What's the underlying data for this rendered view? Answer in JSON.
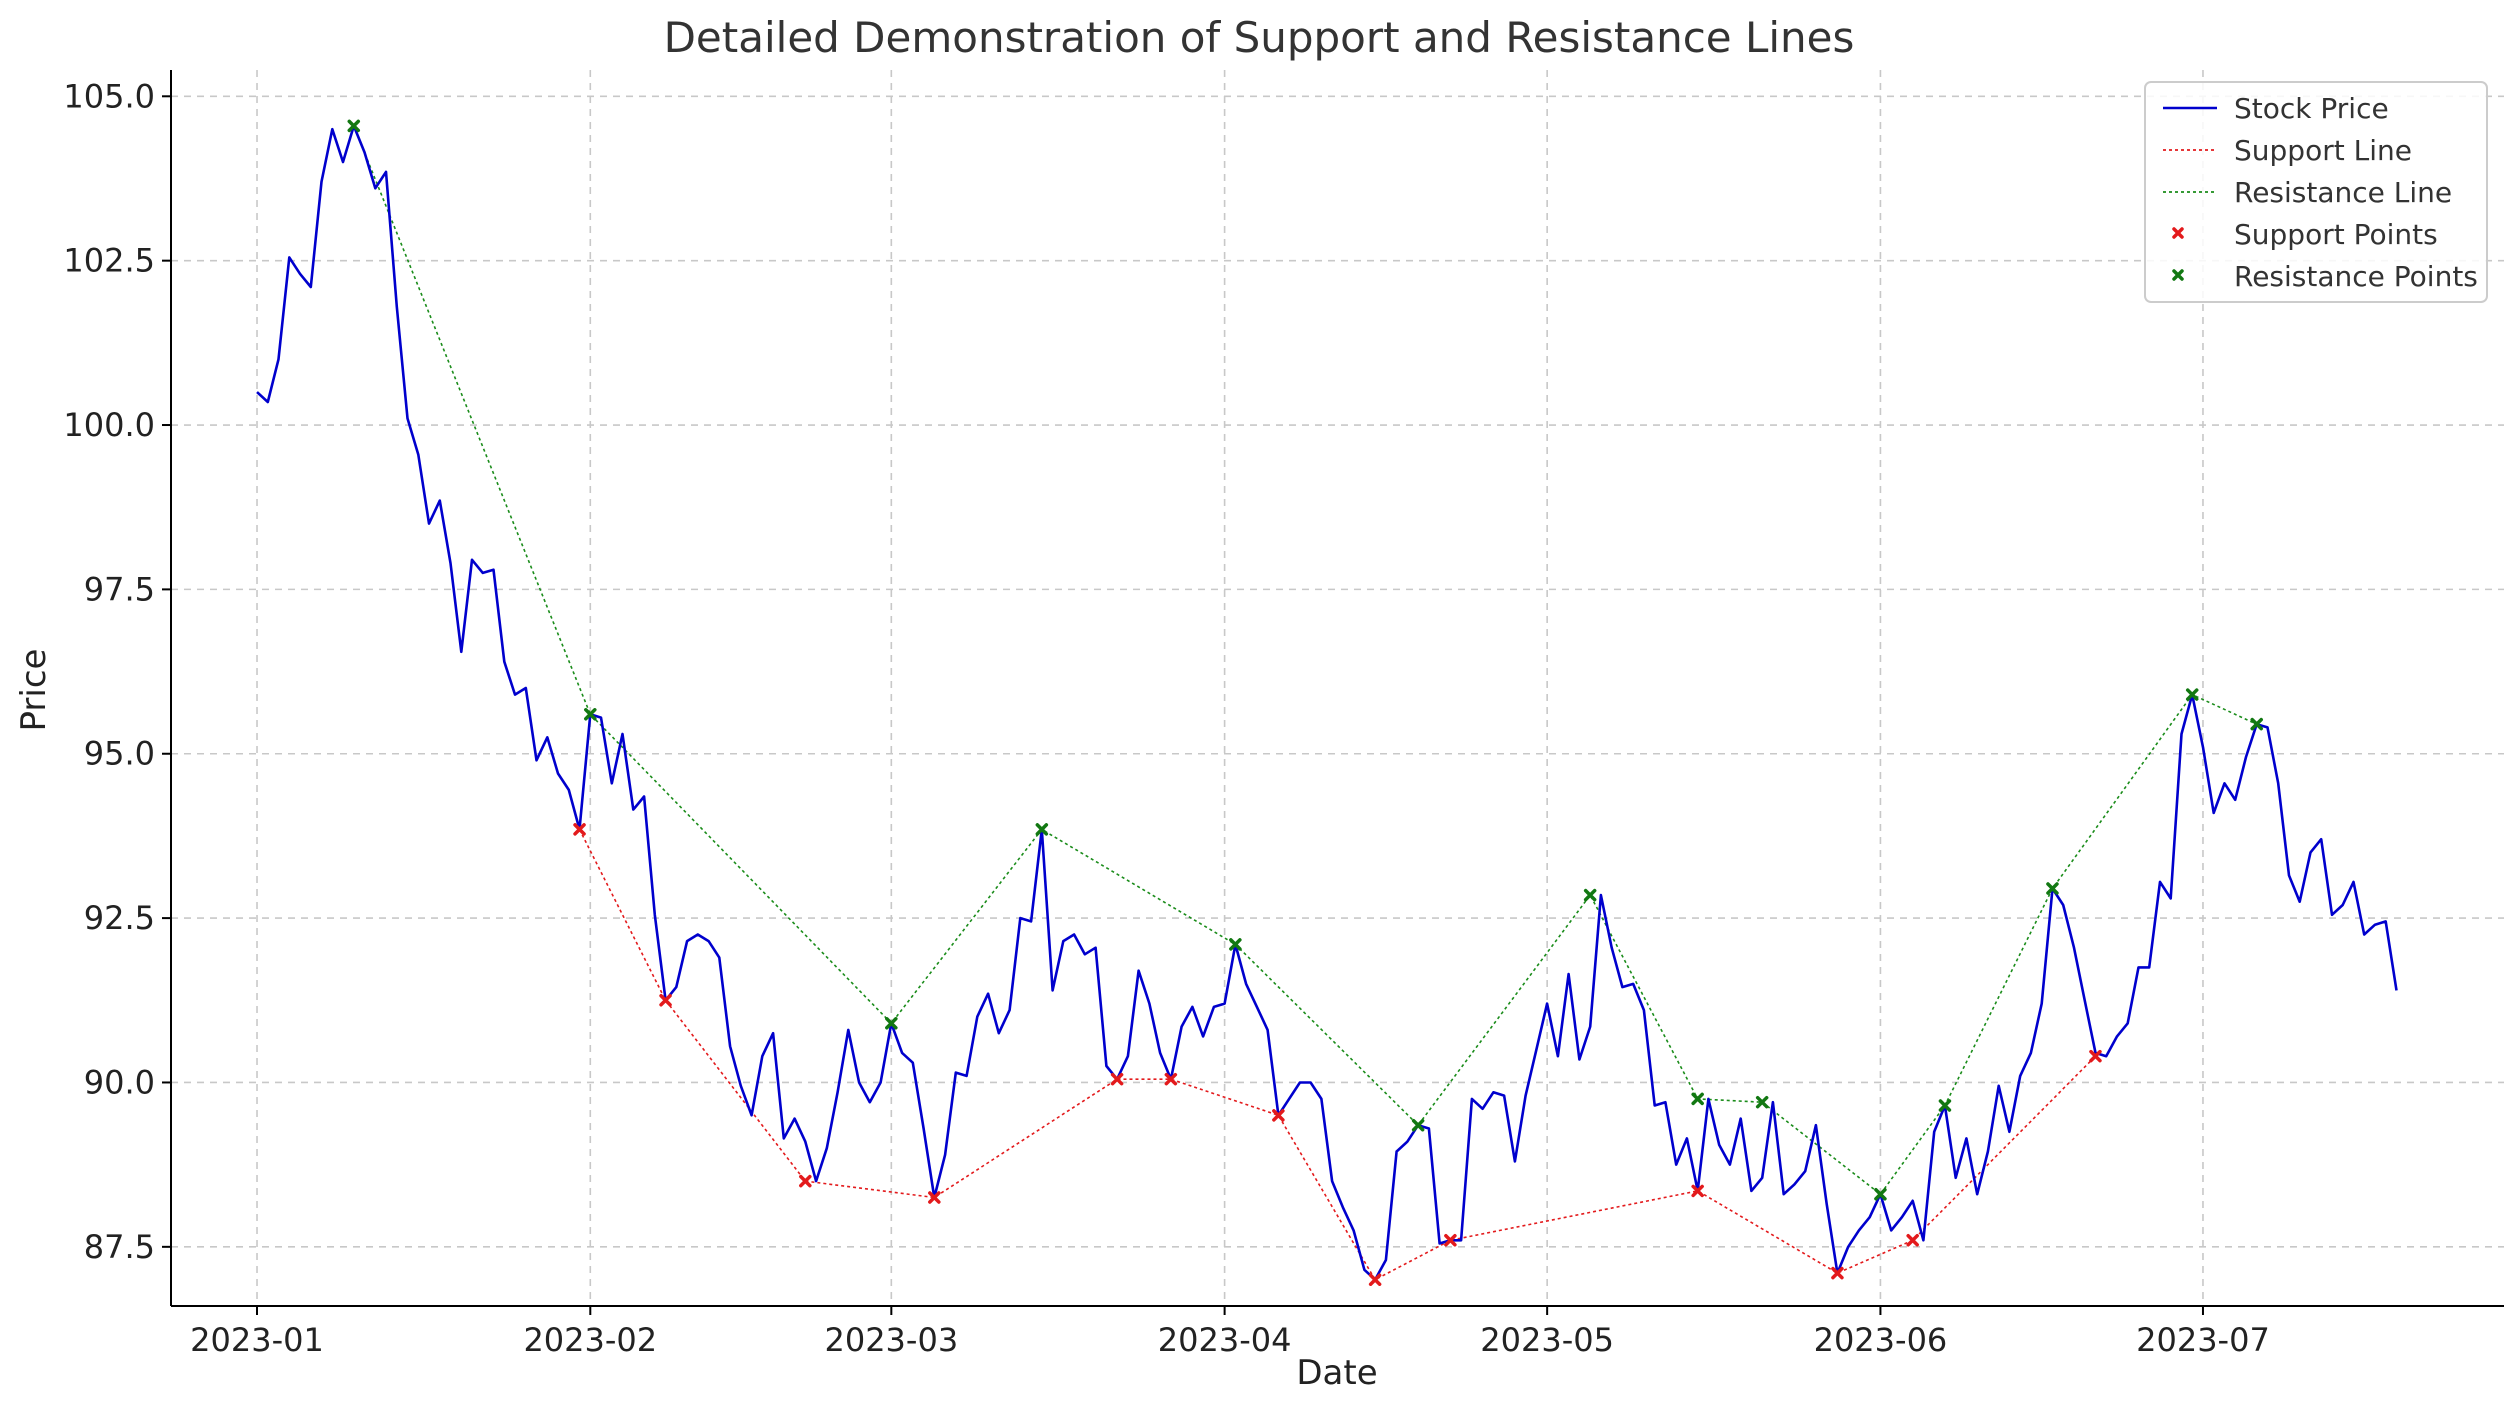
{
  "chart_data": {
    "type": "line",
    "title": "Detailed Demonstration of Support and Resistance Lines",
    "xlabel": "Date",
    "ylabel": "Price",
    "xlim": [
      "2022-12-24",
      "2023-07-29"
    ],
    "ylim": [
      86.6,
      105.4
    ],
    "x_ticks": [
      "2023-01-01",
      "2023-02-01",
      "2023-03-01",
      "2023-04-01",
      "2023-05-01",
      "2023-06-01",
      "2023-07-01"
    ],
    "x_tick_labels": [
      "2023-01",
      "2023-02",
      "2023-03",
      "2023-04",
      "2023-05",
      "2023-06",
      "2023-07"
    ],
    "y_ticks": [
      87.5,
      90.0,
      92.5,
      95.0,
      97.5,
      100.0,
      102.5,
      105.0
    ],
    "y_tick_labels": [
      "87.5",
      "90.0",
      "92.5",
      "95.0",
      "97.5",
      "100.0",
      "102.5",
      "105.0"
    ],
    "grid": true,
    "legend_position": "top-right",
    "legend": [
      "Stock Price",
      "Support Line",
      "Resistance Line",
      "Support Points",
      "Resistance Points"
    ],
    "colors": {
      "stock": "#0000cd",
      "support": "#e31a1c",
      "resistance": "#1a8c1a",
      "support_marker": "#e31a1c",
      "resistance_marker": "#127812"
    },
    "series": [
      {
        "name": "Stock Price",
        "style": "solid",
        "x": [
          "2023-01-01",
          "2023-01-02",
          "2023-01-03",
          "2023-01-04",
          "2023-01-05",
          "2023-01-06",
          "2023-01-07",
          "2023-01-08",
          "2023-01-09",
          "2023-01-10",
          "2023-01-11",
          "2023-01-12",
          "2023-01-13",
          "2023-01-14",
          "2023-01-15",
          "2023-01-16",
          "2023-01-17",
          "2023-01-18",
          "2023-01-19",
          "2023-01-20",
          "2023-01-21",
          "2023-01-22",
          "2023-01-23",
          "2023-01-24",
          "2023-01-25",
          "2023-01-26",
          "2023-01-27",
          "2023-01-28",
          "2023-01-29",
          "2023-01-30",
          "2023-01-31",
          "2023-02-01",
          "2023-02-02",
          "2023-02-03",
          "2023-02-04",
          "2023-02-05",
          "2023-02-06",
          "2023-02-07",
          "2023-02-08",
          "2023-02-09",
          "2023-02-10",
          "2023-02-11",
          "2023-02-12",
          "2023-02-13",
          "2023-02-14",
          "2023-02-15",
          "2023-02-16",
          "2023-02-17",
          "2023-02-18",
          "2023-02-19",
          "2023-02-20",
          "2023-02-21",
          "2023-02-22",
          "2023-02-23",
          "2023-02-24",
          "2023-02-25",
          "2023-02-26",
          "2023-02-27",
          "2023-02-28",
          "2023-03-01",
          "2023-03-02",
          "2023-03-03",
          "2023-03-04",
          "2023-03-05",
          "2023-03-06",
          "2023-03-07",
          "2023-03-08",
          "2023-03-09",
          "2023-03-10",
          "2023-03-11",
          "2023-03-12",
          "2023-03-13",
          "2023-03-14",
          "2023-03-15",
          "2023-03-16",
          "2023-03-17",
          "2023-03-18",
          "2023-03-19",
          "2023-03-20",
          "2023-03-21",
          "2023-03-22",
          "2023-03-23",
          "2023-03-24",
          "2023-03-25",
          "2023-03-26",
          "2023-03-27",
          "2023-03-28",
          "2023-03-29",
          "2023-03-30",
          "2023-03-31",
          "2023-04-01",
          "2023-04-02",
          "2023-04-03",
          "2023-04-04",
          "2023-04-05",
          "2023-04-06",
          "2023-04-07",
          "2023-04-08",
          "2023-04-09",
          "2023-04-10",
          "2023-04-11",
          "2023-04-12",
          "2023-04-13",
          "2023-04-14",
          "2023-04-15",
          "2023-04-16",
          "2023-04-17",
          "2023-04-18",
          "2023-04-19",
          "2023-04-20",
          "2023-04-21",
          "2023-04-22",
          "2023-04-23",
          "2023-04-24",
          "2023-04-25",
          "2023-04-26",
          "2023-04-27",
          "2023-04-28",
          "2023-04-29",
          "2023-04-30",
          "2023-05-01",
          "2023-05-02",
          "2023-05-03",
          "2023-05-04",
          "2023-05-05",
          "2023-05-06",
          "2023-05-07",
          "2023-05-08",
          "2023-05-09",
          "2023-05-10",
          "2023-05-11",
          "2023-05-12",
          "2023-05-13",
          "2023-05-14",
          "2023-05-15",
          "2023-05-16",
          "2023-05-17",
          "2023-05-18",
          "2023-05-19",
          "2023-05-20",
          "2023-05-21",
          "2023-05-22",
          "2023-05-23",
          "2023-05-24",
          "2023-05-25",
          "2023-05-26",
          "2023-05-27",
          "2023-05-28",
          "2023-05-29",
          "2023-05-30",
          "2023-05-31",
          "2023-06-01",
          "2023-06-02",
          "2023-06-03",
          "2023-06-04",
          "2023-06-05",
          "2023-06-06",
          "2023-06-07",
          "2023-06-08",
          "2023-06-09",
          "2023-06-10",
          "2023-06-11",
          "2023-06-12",
          "2023-06-13",
          "2023-06-14",
          "2023-06-15",
          "2023-06-16",
          "2023-06-17",
          "2023-06-18",
          "2023-06-19",
          "2023-06-20",
          "2023-06-21",
          "2023-06-22",
          "2023-06-23",
          "2023-06-24",
          "2023-06-25",
          "2023-06-26",
          "2023-06-27",
          "2023-06-28",
          "2023-06-29",
          "2023-06-30",
          "2023-07-01",
          "2023-07-02",
          "2023-07-03",
          "2023-07-04",
          "2023-07-05",
          "2023-07-06",
          "2023-07-07",
          "2023-07-08",
          "2023-07-09",
          "2023-07-10",
          "2023-07-11",
          "2023-07-12",
          "2023-07-13",
          "2023-07-14",
          "2023-07-15",
          "2023-07-16",
          "2023-07-17",
          "2023-07-18",
          "2023-07-19"
        ],
        "values": [
          100.5,
          100.35,
          101.0,
          102.55,
          102.3,
          102.1,
          103.7,
          104.5,
          104.0,
          104.55,
          104.15,
          103.6,
          103.85,
          101.8,
          100.1,
          99.55,
          98.5,
          98.85,
          97.9,
          96.55,
          97.95,
          97.75,
          97.8,
          96.4,
          95.9,
          96.0,
          94.9,
          95.25,
          94.7,
          94.45,
          93.85,
          95.6,
          95.55,
          94.55,
          95.3,
          94.15,
          94.35,
          92.55,
          91.25,
          91.45,
          92.15,
          92.25,
          92.15,
          91.9,
          90.55,
          89.95,
          89.5,
          90.4,
          90.75,
          89.15,
          89.45,
          89.1,
          88.5,
          89.0,
          89.85,
          90.8,
          90.0,
          89.7,
          90.0,
          90.9,
          90.45,
          90.3,
          89.3,
          88.25,
          88.9,
          90.15,
          90.1,
          91.0,
          91.35,
          90.75,
          91.1,
          92.5,
          92.45,
          93.85,
          91.4,
          92.15,
          92.25,
          91.95,
          92.05,
          90.25,
          90.05,
          90.4,
          91.7,
          91.2,
          90.45,
          90.05,
          90.85,
          91.15,
          90.7,
          91.15,
          91.2,
          92.1,
          91.5,
          91.15,
          90.8,
          89.5,
          89.75,
          90.0,
          90.0,
          89.75,
          88.5,
          88.1,
          87.75,
          87.15,
          87.0,
          87.3,
          88.95,
          89.1,
          89.35,
          89.3,
          87.55,
          87.6,
          87.6,
          89.75,
          89.6,
          89.85,
          89.8,
          88.8,
          89.8,
          90.5,
          91.2,
          90.4,
          91.65,
          90.35,
          90.85,
          92.85,
          92.05,
          91.45,
          91.5,
          91.1,
          89.65,
          89.7,
          88.75,
          89.15,
          88.35,
          89.75,
          89.05,
          88.75,
          89.45,
          88.35,
          88.55,
          89.7,
          88.3,
          88.45,
          88.65,
          89.35,
          88.15,
          87.1,
          87.5,
          87.75,
          87.95,
          88.3,
          87.75,
          87.95,
          88.2,
          87.6,
          89.25,
          89.65,
          88.55,
          89.15,
          88.3,
          88.95,
          89.95,
          89.25,
          90.1,
          90.45,
          91.2,
          92.95,
          92.7,
          92.05,
          91.25,
          90.45,
          90.4,
          90.7,
          90.9,
          91.75,
          91.75,
          93.05,
          92.8,
          95.3,
          95.9,
          95.1,
          94.1,
          94.55,
          94.3,
          94.95,
          95.45,
          95.4,
          94.55,
          93.15,
          92.75,
          93.5,
          93.7,
          92.55,
          92.7,
          93.05,
          92.25,
          92.4,
          92.45,
          91.4
        ]
      },
      {
        "name": "Support Line",
        "style": "dotted",
        "x": [
          "2023-01-31",
          "2023-02-08",
          "2023-02-21",
          "2023-03-05",
          "2023-03-22",
          "2023-03-27",
          "2023-04-06",
          "2023-04-15",
          "2023-04-22",
          "2023-05-15",
          "2023-05-28",
          "2023-06-04",
          "2023-06-21"
        ],
        "values": [
          93.85,
          91.25,
          88.5,
          88.25,
          90.05,
          90.05,
          89.5,
          87.0,
          87.6,
          88.35,
          87.1,
          87.6,
          90.4
        ]
      },
      {
        "name": "Resistance Line",
        "style": "dotted",
        "x": [
          "2023-01-10",
          "2023-02-01",
          "2023-03-01",
          "2023-03-15",
          "2023-04-02",
          "2023-04-19",
          "2023-05-05",
          "2023-05-15",
          "2023-05-21",
          "2023-06-01",
          "2023-06-07",
          "2023-06-17",
          "2023-06-30",
          "2023-07-06"
        ],
        "values": [
          104.55,
          95.6,
          90.9,
          93.85,
          92.1,
          89.35,
          92.85,
          89.75,
          89.7,
          88.3,
          89.65,
          92.95,
          95.9,
          95.45
        ]
      }
    ]
  }
}
